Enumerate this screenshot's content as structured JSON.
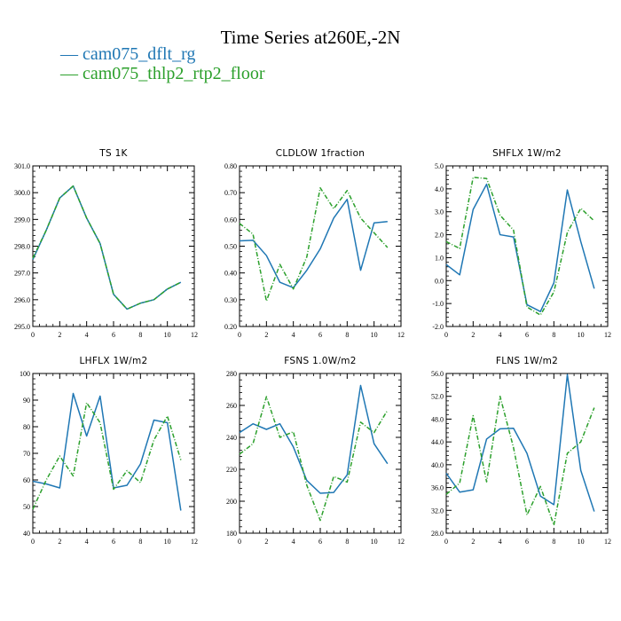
{
  "title": "Time Series at260E,-2N",
  "legend": [
    {
      "label": "cam075_dflt_rg",
      "color": "#1f77b4",
      "dash": false
    },
    {
      "label": "cam075_thlp2_rtp2_floor",
      "color": "#2ca02c",
      "dash": true
    }
  ],
  "chart_data": [
    {
      "type": "line",
      "title": "TS   1K",
      "x": [
        0,
        1,
        2,
        3,
        4,
        5,
        6,
        7,
        8,
        9,
        10,
        11
      ],
      "xlim": [
        0,
        12
      ],
      "xticks": [
        "0",
        "2",
        "4",
        "6",
        "8",
        "10",
        "12"
      ],
      "ylim": [
        295,
        301
      ],
      "yticks": [
        "295.0",
        "296.0",
        "297.0",
        "298.0",
        "299.0",
        "300.0",
        "301.0"
      ],
      "series": [
        {
          "name": "cam075_dflt_rg",
          "values": [
            297.5,
            298.6,
            299.8,
            300.25,
            299.05,
            298.1,
            296.2,
            295.65,
            295.87,
            296.0,
            296.4,
            296.65
          ]
        },
        {
          "name": "cam075_thlp2_rtp2_floor",
          "values": [
            297.55,
            298.6,
            299.8,
            300.25,
            299.05,
            298.1,
            296.2,
            295.65,
            295.87,
            296.0,
            296.4,
            296.65
          ]
        }
      ]
    },
    {
      "type": "line",
      "title": "CLDLOW   1fraction",
      "x": [
        0,
        1,
        2,
        3,
        4,
        5,
        6,
        7,
        8,
        9,
        10,
        11
      ],
      "xlim": [
        0,
        12
      ],
      "xticks": [
        "0",
        "2",
        "4",
        "6",
        "8",
        "10",
        "12"
      ],
      "ylim": [
        0.2,
        0.8
      ],
      "yticks": [
        "0.20",
        "0.30",
        "0.40",
        "0.50",
        "0.60",
        "0.70",
        "0.80"
      ],
      "series": [
        {
          "name": "cam075_dflt_rg",
          "values": [
            0.52,
            0.522,
            0.465,
            0.365,
            0.345,
            0.41,
            0.49,
            0.605,
            0.675,
            0.41,
            0.587,
            0.592
          ]
        },
        {
          "name": "cam075_thlp2_rtp2_floor",
          "values": [
            0.585,
            0.545,
            0.295,
            0.432,
            0.34,
            0.46,
            0.718,
            0.64,
            0.708,
            0.605,
            0.55,
            0.495
          ]
        }
      ]
    },
    {
      "type": "line",
      "title": "SHFLX   1W/m2",
      "x": [
        0,
        1,
        2,
        3,
        4,
        5,
        6,
        7,
        8,
        9,
        10,
        11
      ],
      "xlim": [
        0,
        12
      ],
      "xticks": [
        "0",
        "2",
        "4",
        "6",
        "8",
        "10",
        "12"
      ],
      "ylim": [
        -2,
        5
      ],
      "yticks": [
        "-2.0",
        "-1.0",
        "0.0",
        "1.0",
        "2.0",
        "3.0",
        "4.0",
        "5.0"
      ],
      "series": [
        {
          "name": "cam075_dflt_rg",
          "values": [
            0.7,
            0.25,
            3.1,
            4.2,
            2.0,
            1.9,
            -1.05,
            -1.35,
            -0.1,
            3.95,
            1.7,
            -0.35
          ]
        },
        {
          "name": "cam075_thlp2_rtp2_floor",
          "values": [
            1.7,
            1.4,
            4.5,
            4.45,
            2.85,
            2.2,
            -1.15,
            -1.5,
            -0.5,
            2.1,
            3.15,
            2.6
          ]
        }
      ]
    },
    {
      "type": "line",
      "title": "LHFLX   1W/m2",
      "x": [
        0,
        1,
        2,
        3,
        4,
        5,
        6,
        7,
        8,
        9,
        10,
        11
      ],
      "xlim": [
        0,
        12
      ],
      "xticks": [
        "0",
        "2",
        "4",
        "6",
        "8",
        "10",
        "12"
      ],
      "ylim": [
        40,
        100
      ],
      "yticks": [
        "40",
        "50",
        "60",
        "70",
        "80",
        "90",
        "100"
      ],
      "series": [
        {
          "name": "cam075_dflt_rg",
          "values": [
            59.5,
            58.5,
            57,
            92.5,
            76.5,
            91.5,
            57,
            58,
            66,
            82.5,
            81.5,
            48.5
          ]
        },
        {
          "name": "cam075_thlp2_rtp2_floor",
          "values": [
            49,
            60,
            69,
            61.5,
            89,
            81.5,
            56.5,
            63.5,
            59,
            75,
            84,
            67.5
          ]
        }
      ]
    },
    {
      "type": "line",
      "title": "FSNS   1.0W/m2",
      "x": [
        0,
        1,
        2,
        3,
        4,
        5,
        6,
        7,
        8,
        9,
        10,
        11
      ],
      "xlim": [
        0,
        12
      ],
      "xticks": [
        "0",
        "2",
        "4",
        "6",
        "8",
        "10",
        "12"
      ],
      "ylim": [
        180,
        280
      ],
      "yticks": [
        "180",
        "200",
        "220",
        "240",
        "260",
        "280"
      ],
      "series": [
        {
          "name": "cam075_dflt_rg",
          "values": [
            243,
            248.5,
            245,
            248.5,
            234,
            213,
            205,
            205.5,
            216.5,
            272.5,
            236,
            223.5
          ]
        },
        {
          "name": "cam075_thlp2_rtp2_floor",
          "values": [
            229.5,
            236,
            265.5,
            240,
            243.5,
            210,
            188,
            215.5,
            212,
            249.5,
            243,
            257
          ]
        }
      ]
    },
    {
      "type": "line",
      "title": "FLNS   1W/m2",
      "x": [
        0,
        1,
        2,
        3,
        4,
        5,
        6,
        7,
        8,
        9,
        10,
        11
      ],
      "xlim": [
        0,
        12
      ],
      "xticks": [
        "0",
        "2",
        "4",
        "6",
        "8",
        "10",
        "12"
      ],
      "ylim": [
        28,
        56
      ],
      "yticks": [
        "28.0",
        "32.0",
        "36.0",
        "40.0",
        "44.0",
        "48.0",
        "52.0",
        "56.0"
      ],
      "series": [
        {
          "name": "cam075_dflt_rg",
          "values": [
            38.5,
            35.2,
            35.6,
            44.5,
            46.3,
            46.4,
            42,
            34.5,
            33,
            55.8,
            39,
            31.8
          ]
        },
        {
          "name": "cam075_thlp2_rtp2_floor",
          "values": [
            34.8,
            36.8,
            48.6,
            37,
            52,
            43,
            31.2,
            36.2,
            29.4,
            42,
            44,
            50
          ]
        }
      ]
    }
  ]
}
